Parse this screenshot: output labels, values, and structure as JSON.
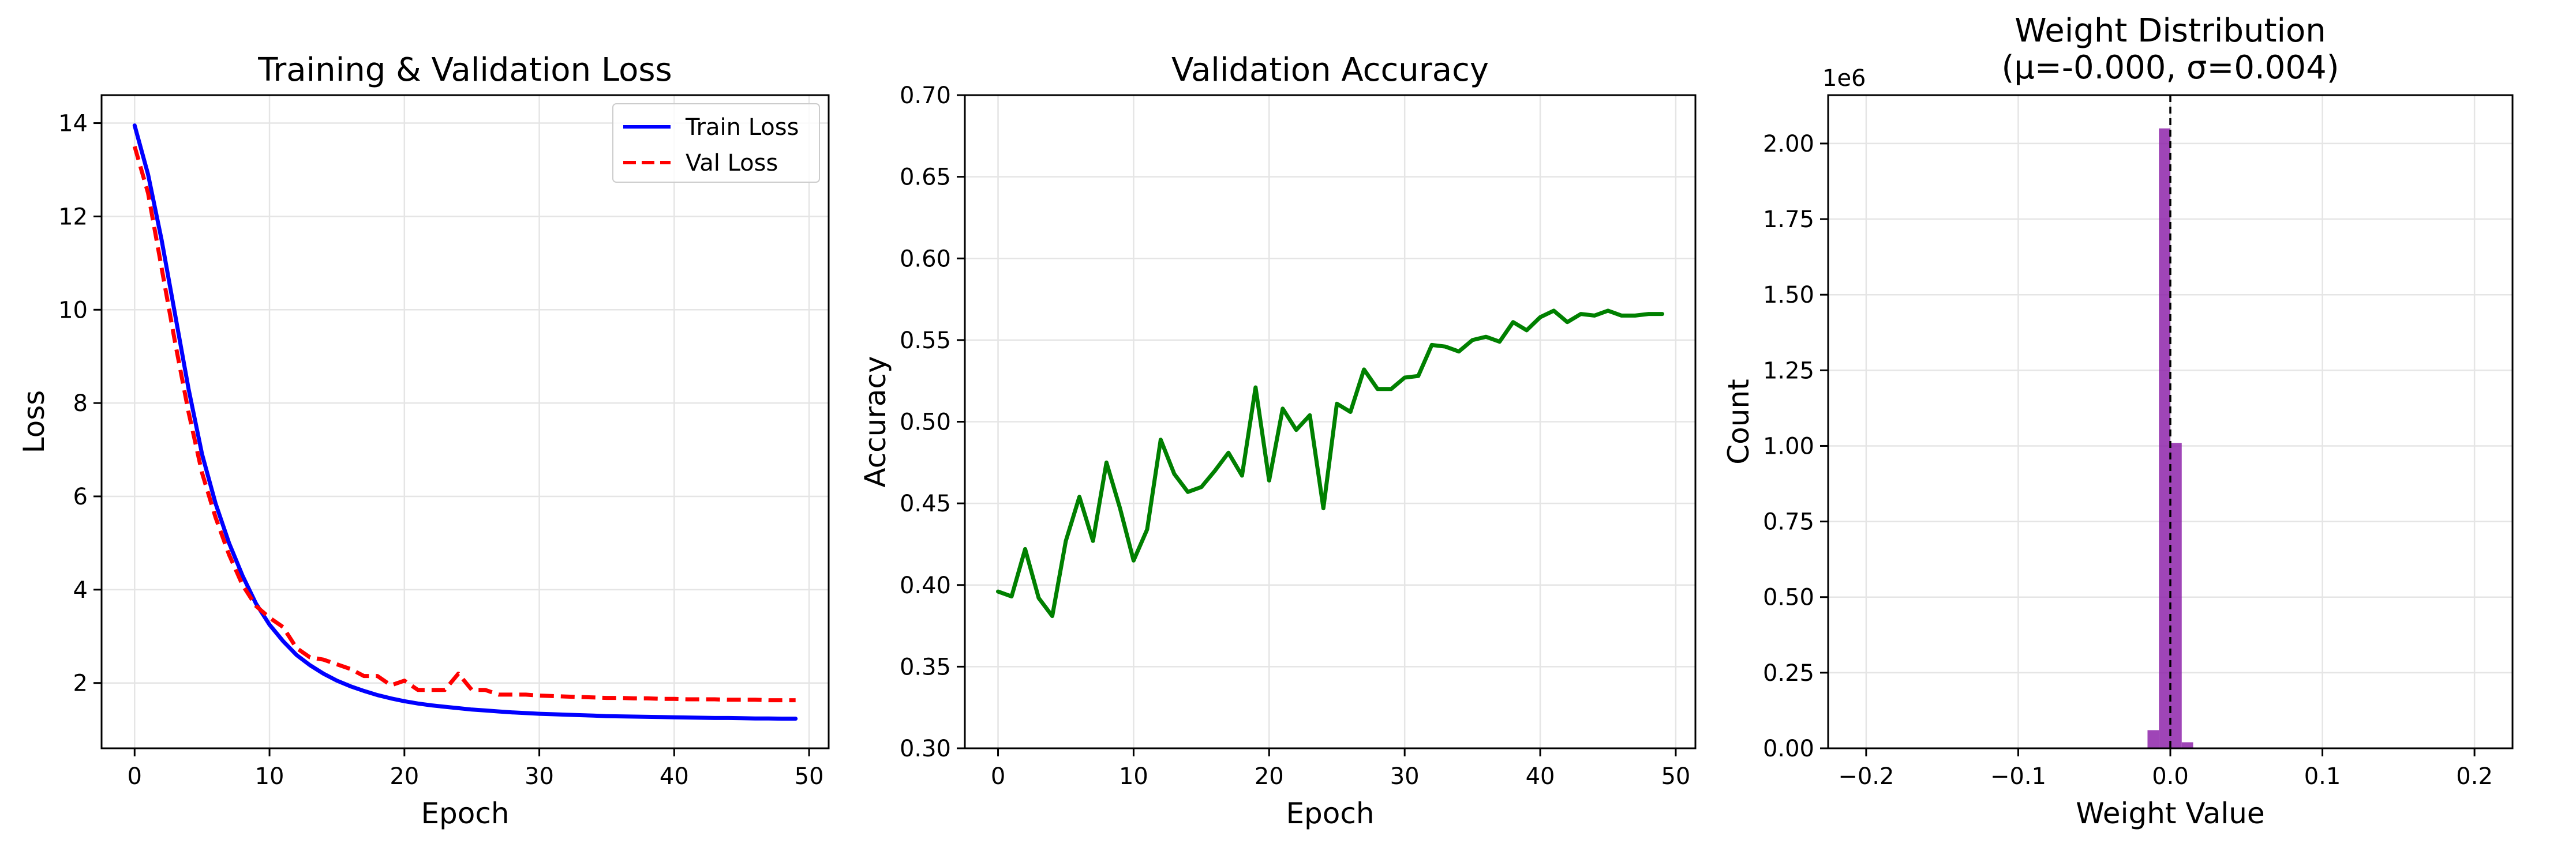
{
  "colors": {
    "train_loss": "#0000ff",
    "val_loss": "#ff0000",
    "accuracy": "#008000",
    "histogram": "#8e24aa",
    "grid": "#e5e5e5",
    "axes": "#000000"
  },
  "chart_data": [
    {
      "type": "line",
      "title": "Training & Validation Loss",
      "xlabel": "Epoch",
      "ylabel": "Loss",
      "xlim": [
        -2.45,
        51.45
      ],
      "ylim": [
        0.6,
        14.6
      ],
      "xticks": [
        0,
        10,
        20,
        30,
        40,
        50
      ],
      "yticks": [
        2,
        4,
        6,
        8,
        10,
        12,
        14
      ],
      "grid": true,
      "legend": "top-right",
      "x": [
        0,
        1,
        2,
        3,
        4,
        5,
        6,
        7,
        8,
        9,
        10,
        11,
        12,
        13,
        14,
        15,
        16,
        17,
        18,
        19,
        20,
        21,
        22,
        23,
        24,
        25,
        26,
        27,
        28,
        29,
        30,
        31,
        32,
        33,
        34,
        35,
        36,
        37,
        38,
        39,
        40,
        41,
        42,
        43,
        44,
        45,
        46,
        47,
        48,
        49
      ],
      "series": [
        {
          "name": "Train Loss",
          "style": "solid",
          "values": [
            13.95,
            12.9,
            11.5,
            9.9,
            8.3,
            6.9,
            5.85,
            5.0,
            4.3,
            3.7,
            3.25,
            2.9,
            2.6,
            2.38,
            2.2,
            2.05,
            1.93,
            1.83,
            1.74,
            1.67,
            1.61,
            1.56,
            1.52,
            1.49,
            1.46,
            1.43,
            1.41,
            1.39,
            1.37,
            1.355,
            1.34,
            1.33,
            1.32,
            1.31,
            1.3,
            1.29,
            1.285,
            1.28,
            1.275,
            1.27,
            1.265,
            1.26,
            1.255,
            1.25,
            1.25,
            1.245,
            1.24,
            1.24,
            1.235,
            1.235
          ]
        },
        {
          "name": "Val Loss",
          "style": "dashed",
          "values": [
            13.5,
            12.5,
            10.9,
            9.3,
            7.8,
            6.5,
            5.55,
            4.75,
            4.1,
            3.65,
            3.4,
            3.2,
            2.75,
            2.55,
            2.5,
            2.4,
            2.3,
            2.15,
            2.15,
            1.95,
            2.05,
            1.85,
            1.85,
            1.85,
            2.2,
            1.85,
            1.85,
            1.75,
            1.75,
            1.75,
            1.73,
            1.72,
            1.71,
            1.7,
            1.69,
            1.68,
            1.68,
            1.67,
            1.67,
            1.66,
            1.66,
            1.65,
            1.65,
            1.65,
            1.64,
            1.64,
            1.64,
            1.63,
            1.63,
            1.63
          ]
        }
      ]
    },
    {
      "type": "line",
      "title": "Validation Accuracy",
      "xlabel": "Epoch",
      "ylabel": "Accuracy",
      "xlim": [
        -2.45,
        51.45
      ],
      "ylim": [
        0.3,
        0.7
      ],
      "xticks": [
        0,
        10,
        20,
        30,
        40,
        50
      ],
      "yticks": [
        0.3,
        0.35,
        0.4,
        0.45,
        0.5,
        0.55,
        0.6,
        0.65,
        0.7
      ],
      "ytick_labels": [
        "0.30",
        "0.35",
        "0.40",
        "0.45",
        "0.50",
        "0.55",
        "0.60",
        "0.65",
        "0.70"
      ],
      "grid": true,
      "x": [
        0,
        1,
        2,
        3,
        4,
        5,
        6,
        7,
        8,
        9,
        10,
        11,
        12,
        13,
        14,
        15,
        16,
        17,
        18,
        19,
        20,
        21,
        22,
        23,
        24,
        25,
        26,
        27,
        28,
        29,
        30,
        31,
        32,
        33,
        34,
        35,
        36,
        37,
        38,
        39,
        40,
        41,
        42,
        43,
        44,
        45,
        46,
        47,
        48,
        49
      ],
      "series": [
        {
          "values": [
            0.396,
            0.393,
            0.422,
            0.392,
            0.381,
            0.427,
            0.454,
            0.427,
            0.475,
            0.447,
            0.415,
            0.434,
            0.489,
            0.468,
            0.457,
            0.46,
            0.47,
            0.481,
            0.467,
            0.521,
            0.464,
            0.508,
            0.495,
            0.504,
            0.447,
            0.511,
            0.506,
            0.532,
            0.52,
            0.52,
            0.527,
            0.528,
            0.547,
            0.546,
            0.543,
            0.55,
            0.552,
            0.549,
            0.561,
            0.556,
            0.564,
            0.568,
            0.561,
            0.566,
            0.565,
            0.568,
            0.565,
            0.565,
            0.566,
            0.566
          ]
        }
      ]
    },
    {
      "type": "bar",
      "title_line1": "Weight Distribution",
      "title_line2": "(μ=-0.000, σ=0.004)",
      "xlabel": "Weight Value",
      "ylabel": "Count",
      "offset_label": "1e6",
      "xlim": [
        -0.225,
        0.225
      ],
      "ylim": [
        0,
        2.16
      ],
      "xticks": [
        -0.2,
        -0.1,
        0.0,
        0.1,
        0.2
      ],
      "xtick_labels": [
        "−0.2",
        "−0.1",
        "0.0",
        "0.1",
        "0.2"
      ],
      "yticks": [
        0,
        0.25,
        0.5,
        0.75,
        1.0,
        1.25,
        1.5,
        1.75,
        2.0
      ],
      "ytick_labels": [
        "0.00",
        "0.25",
        "0.50",
        "0.75",
        "1.00",
        "1.25",
        "1.50",
        "1.75",
        "2.00"
      ],
      "grid": true,
      "mean_line": 0.0,
      "bins": [
        {
          "start": -0.015,
          "end": -0.0075,
          "value": 0.06
        },
        {
          "start": -0.0075,
          "end": 0.0,
          "value": 2.05
        },
        {
          "start": 0.0,
          "end": 0.0075,
          "value": 1.01
        },
        {
          "start": 0.0075,
          "end": 0.015,
          "value": 0.02
        }
      ]
    }
  ]
}
